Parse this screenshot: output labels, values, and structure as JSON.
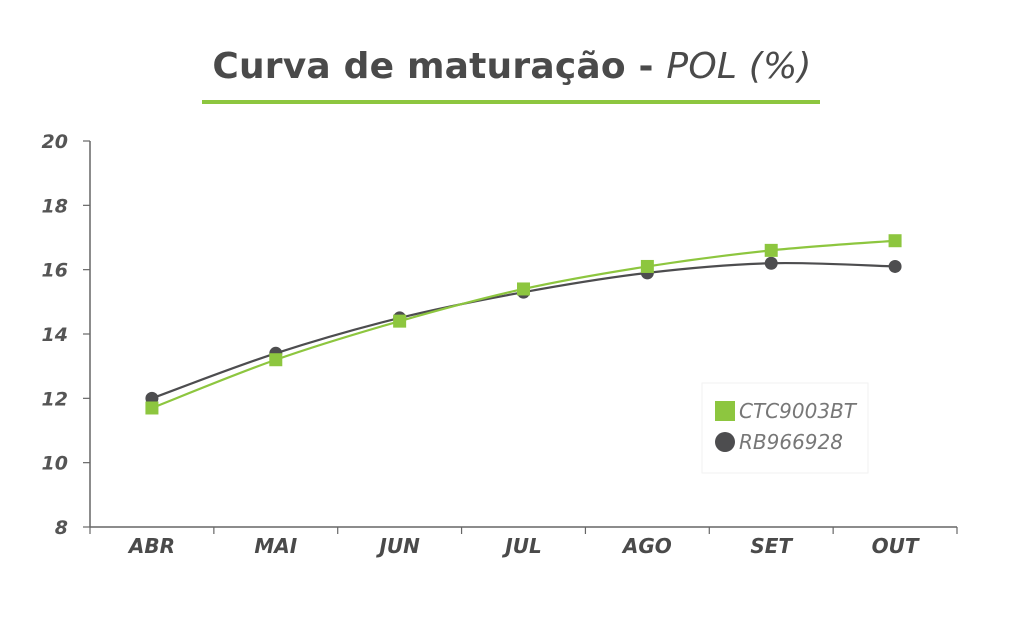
{
  "title": {
    "main": "Curva de maturação - ",
    "italic": "POL (%)"
  },
  "colors": {
    "accent": "#8dc63f",
    "dark": "#4d4d4f",
    "axis": "#666666"
  },
  "chart_data": {
    "type": "line",
    "title": "Curva de maturação - POL (%)",
    "xlabel": "",
    "ylabel": "",
    "categories": [
      "ABR",
      "MAI",
      "JUN",
      "JUL",
      "AGO",
      "SET",
      "OUT"
    ],
    "ylim": [
      8,
      20
    ],
    "yticks": [
      8,
      10,
      12,
      14,
      16,
      18,
      20
    ],
    "grid": false,
    "legend_position": "right",
    "series": [
      {
        "name": "CTC9003BT",
        "marker": "square",
        "color": "#8dc63f",
        "values": [
          11.7,
          13.2,
          14.4,
          15.4,
          16.1,
          16.6,
          16.9
        ]
      },
      {
        "name": "RB966928",
        "marker": "circle",
        "color": "#4d4d4f",
        "values": [
          12.0,
          13.4,
          14.5,
          15.3,
          15.9,
          16.2,
          16.1
        ]
      }
    ]
  }
}
